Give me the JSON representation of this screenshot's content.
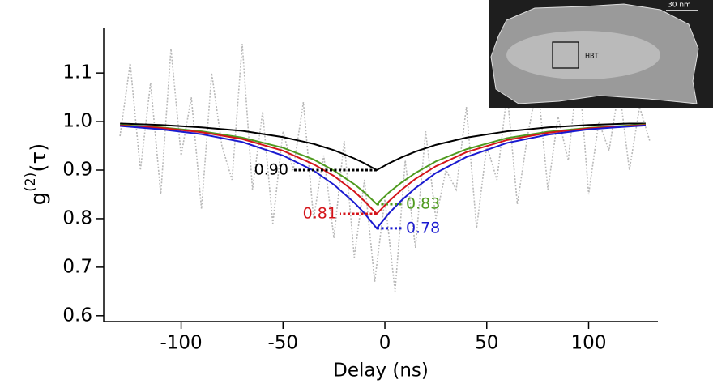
{
  "chart_data": {
    "type": "line",
    "xlabel": "Delay (ns)",
    "ylabel": {
      "base": "g",
      "sup": "(2)",
      "rest": "(τ)"
    },
    "xlim": [
      -138,
      134
    ],
    "ylim": [
      0.588,
      1.192
    ],
    "xticks": [
      -100,
      -50,
      0,
      50,
      100
    ],
    "yticks": [
      0.6,
      0.7,
      0.8,
      0.9,
      {
        "value": 1,
        "label": "1.0"
      },
      1.1
    ],
    "raw": {
      "color": "#b8b8b8",
      "x": [
        -130,
        -125,
        -120,
        -115,
        -110,
        -105,
        -100,
        -95,
        -90,
        -85,
        -80,
        -75,
        -70,
        -65,
        -60,
        -55,
        -50,
        -45,
        -40,
        -35,
        -30,
        -25,
        -20,
        -15,
        -10,
        -5,
        0,
        5,
        10,
        15,
        20,
        25,
        30,
        35,
        40,
        45,
        50,
        55,
        60,
        65,
        70,
        75,
        80,
        85,
        90,
        95,
        100,
        105,
        110,
        115,
        120,
        125,
        130
      ],
      "values": [
        0.97,
        1.12,
        0.9,
        1.08,
        0.85,
        1.15,
        0.93,
        1.05,
        0.82,
        1.1,
        0.95,
        0.88,
        1.16,
        0.86,
        1.02,
        0.79,
        0.98,
        0.9,
        1.04,
        0.8,
        0.93,
        0.76,
        0.96,
        0.72,
        0.88,
        0.67,
        0.84,
        0.65,
        0.92,
        0.74,
        0.98,
        0.8,
        0.9,
        0.86,
        1.03,
        0.78,
        0.95,
        0.88,
        1.06,
        0.83,
        0.97,
        1.08,
        0.86,
        1.01,
        0.92,
        1.12,
        0.85,
        1.0,
        0.94,
        1.07,
        0.9,
        1.03,
        0.96
      ]
    },
    "x": [
      -130,
      -110,
      -90,
      -70,
      -50,
      -35,
      -25,
      -15,
      -10,
      -4,
      2,
      8,
      15,
      25,
      40,
      60,
      80,
      100,
      120,
      128
    ],
    "series": [
      {
        "color": "#000000",
        "values": [
          0.996,
          0.993,
          0.988,
          0.981,
          0.968,
          0.954,
          0.941,
          0.924,
          0.914,
          0.9,
          0.914,
          0.926,
          0.938,
          0.952,
          0.967,
          0.98,
          0.988,
          0.993,
          0.996,
          0.996
        ]
      },
      {
        "color": "#4e9a1e",
        "values": [
          0.993,
          0.988,
          0.98,
          0.967,
          0.946,
          0.922,
          0.899,
          0.871,
          0.854,
          0.83,
          0.854,
          0.874,
          0.894,
          0.918,
          0.943,
          0.966,
          0.979,
          0.987,
          0.992,
          0.994
        ]
      },
      {
        "color": "#d4141a",
        "values": [
          0.992,
          0.987,
          0.978,
          0.964,
          0.94,
          0.912,
          0.888,
          0.856,
          0.836,
          0.81,
          0.836,
          0.859,
          0.882,
          0.908,
          0.937,
          0.962,
          0.977,
          0.986,
          0.991,
          0.993
        ]
      },
      {
        "color": "#1a1ad0",
        "values": [
          0.991,
          0.984,
          0.974,
          0.958,
          0.93,
          0.899,
          0.87,
          0.833,
          0.811,
          0.78,
          0.811,
          0.837,
          0.863,
          0.894,
          0.927,
          0.956,
          0.973,
          0.984,
          0.99,
          0.992
        ]
      }
    ],
    "annotations": [
      {
        "label": "0.90",
        "value": 0.9,
        "x": -4,
        "color": "#000000",
        "side": "left"
      },
      {
        "label": "0.83",
        "value": 0.83,
        "x": -4,
        "color": "#4e9a1e",
        "side": "right"
      },
      {
        "label": "0.81",
        "value": 0.81,
        "x": -4,
        "color": "#d4141a",
        "side": "left"
      },
      {
        "label": "0.78",
        "value": 0.78,
        "x": -4,
        "color": "#1a1ad0",
        "side": "right"
      }
    ]
  },
  "inset": {
    "scale_label": "30 nm",
    "label": "HBT"
  }
}
